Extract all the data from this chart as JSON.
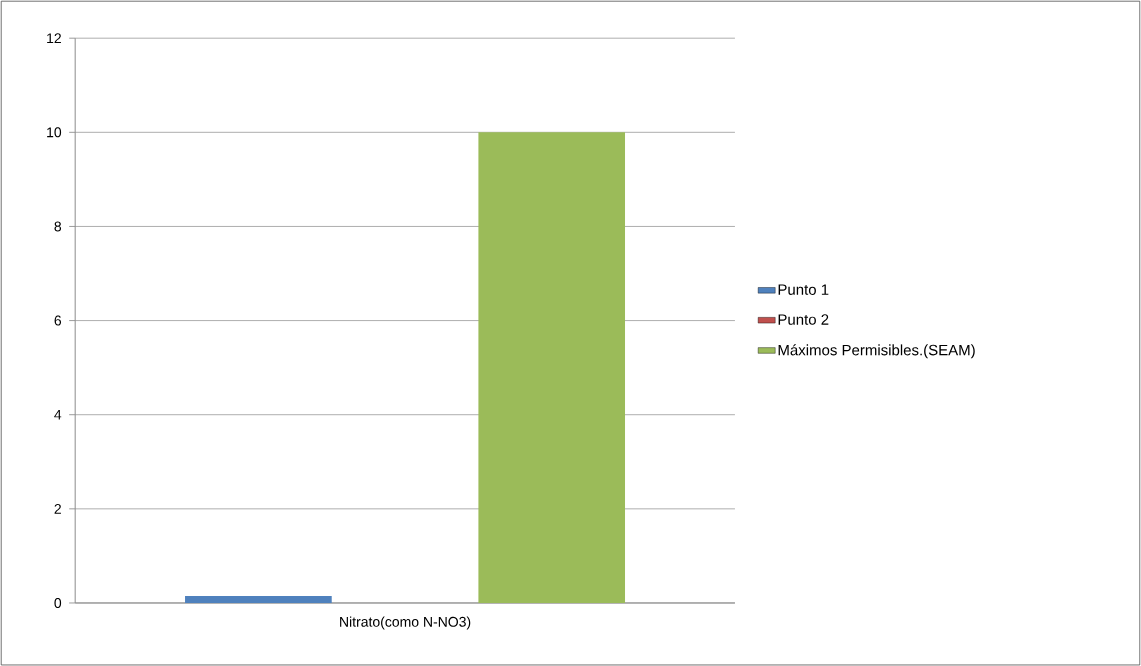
{
  "chart_data": {
    "type": "bar",
    "categories": [
      "Nitrato(como N-NO3)"
    ],
    "series": [
      {
        "name": "Punto 1",
        "color": "#4f81bd",
        "values": [
          0.15
        ]
      },
      {
        "name": "Punto 2",
        "color": "#c0504d",
        "values": [
          0
        ]
      },
      {
        "name": "Máximos Permisibles.(SEAM)",
        "color": "#9bbb59",
        "values": [
          10
        ]
      }
    ],
    "ylim": [
      0,
      12
    ],
    "yticks": [
      0,
      2,
      4,
      6,
      8,
      10,
      12
    ],
    "grid": "y",
    "legend": "right"
  }
}
